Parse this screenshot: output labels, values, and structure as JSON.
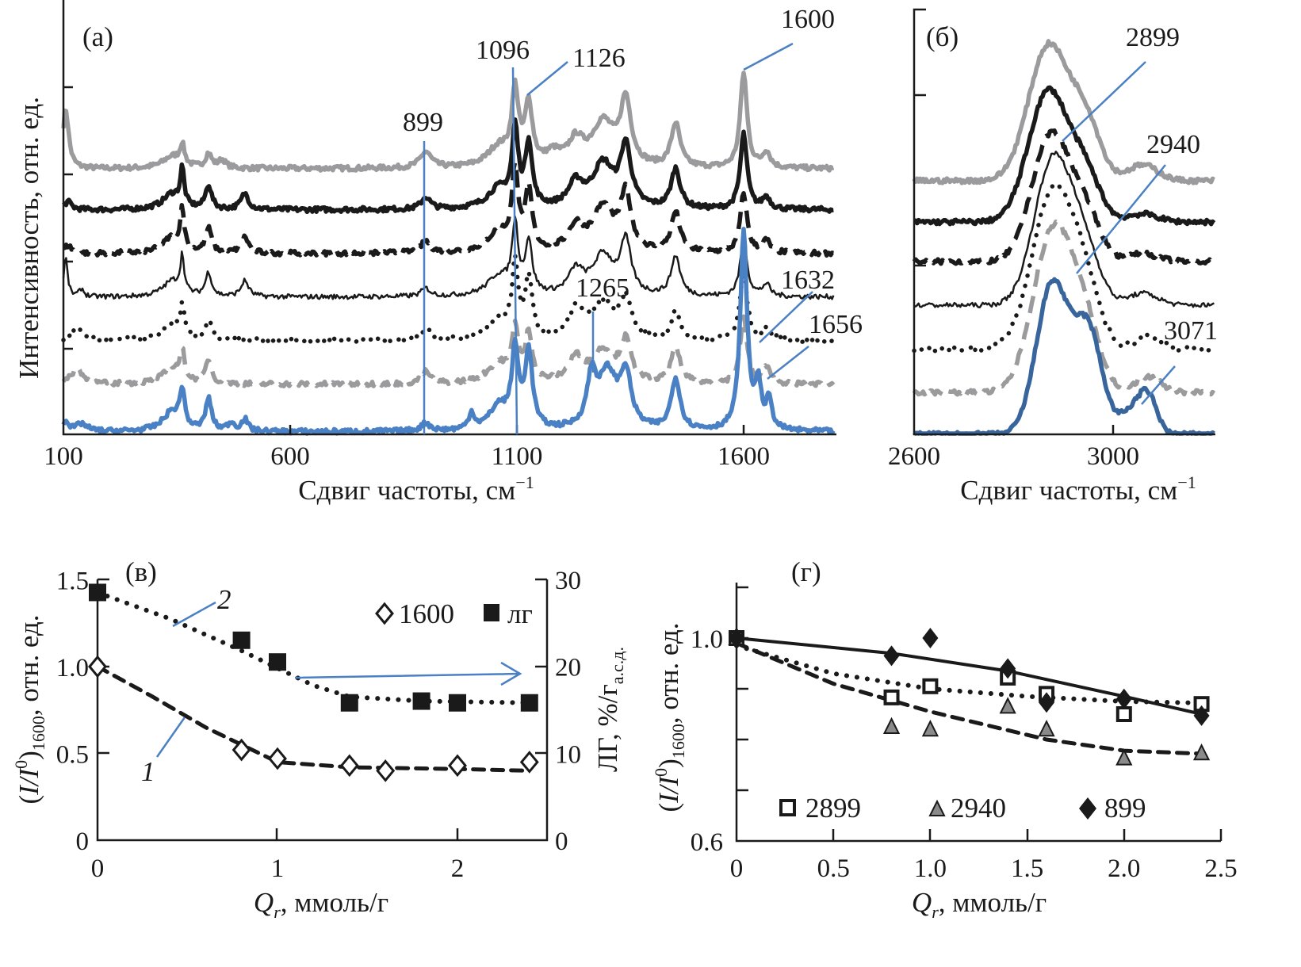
{
  "colors": {
    "gray": "#9b9b9d",
    "black": "#1a1a1a",
    "blue": "#4a80c4",
    "dark_blue": "#38659c",
    "triangle_fill": "#8a8a8a"
  },
  "chart_data": [
    {
      "panel": "(a)",
      "type": "line",
      "xlabel": "Сдвиг частоты, см",
      "xlabel_sup": "−1",
      "ylabel": "Интенсивность, отн. ед.",
      "xlim": [
        100,
        1800
      ],
      "xticks": [
        "100",
        "600",
        "1100",
        "1600"
      ],
      "annotations": [
        "899",
        "1096",
        "1126",
        "1600",
        "1265",
        "1632",
        "1656"
      ],
      "series": [
        {
          "color": "#9b9b9d",
          "style": "solid",
          "weight": "thick",
          "peaks": [
            [
              105,
              0.75,
              8
            ],
            [
              340,
              0.15,
              25
            ],
            [
              362,
              0.25,
              6
            ],
            [
              420,
              0.18,
              8
            ],
            [
              450,
              0.1,
              10
            ],
            [
              899,
              0.2,
              15
            ],
            [
              1060,
              0.25,
              30
            ],
            [
              1096,
              0.9,
              9
            ],
            [
              1126,
              0.75,
              10
            ],
            [
              1180,
              0.15,
              20
            ],
            [
              1230,
              0.3,
              20
            ],
            [
              1290,
              0.55,
              30
            ],
            [
              1340,
              0.8,
              14
            ],
            [
              1450,
              0.55,
              12
            ],
            [
              1600,
              1.2,
              9
            ],
            [
              1650,
              0.2,
              10
            ]
          ]
        },
        {
          "color": "#1a1a1a",
          "style": "solid",
          "weight": "thick",
          "peaks": [
            [
              110,
              0.1,
              10
            ],
            [
              340,
              0.2,
              25
            ],
            [
              362,
              0.45,
              5
            ],
            [
              420,
              0.3,
              8
            ],
            [
              500,
              0.2,
              10
            ],
            [
              899,
              0.15,
              12
            ],
            [
              1060,
              0.25,
              30
            ],
            [
              1096,
              0.95,
              8
            ],
            [
              1126,
              0.8,
              9
            ],
            [
              1230,
              0.3,
              20
            ],
            [
              1290,
              0.55,
              28
            ],
            [
              1340,
              0.75,
              14
            ],
            [
              1450,
              0.5,
              12
            ],
            [
              1600,
              0.95,
              9
            ],
            [
              1650,
              0.15,
              10
            ]
          ]
        },
        {
          "color": "#1a1a1a",
          "style": "dashed",
          "weight": "thick",
          "peaks": [
            [
              110,
              0.1,
              10
            ],
            [
              340,
              0.2,
              25
            ],
            [
              362,
              0.5,
              5
            ],
            [
              420,
              0.3,
              8
            ],
            [
              500,
              0.2,
              10
            ],
            [
              899,
              0.15,
              12
            ],
            [
              1060,
              0.25,
              30
            ],
            [
              1096,
              1.0,
              8
            ],
            [
              1126,
              0.75,
              9
            ],
            [
              1230,
              0.3,
              20
            ],
            [
              1290,
              0.55,
              28
            ],
            [
              1340,
              0.7,
              14
            ],
            [
              1450,
              0.5,
              12
            ],
            [
              1600,
              0.75,
              9
            ],
            [
              1650,
              0.15,
              10
            ]
          ]
        },
        {
          "color": "#1a1a1a",
          "style": "solid",
          "weight": "thin",
          "peaks": [
            [
              105,
              0.5,
              5
            ],
            [
              140,
              0.1,
              6
            ],
            [
              340,
              0.2,
              25
            ],
            [
              362,
              0.45,
              5
            ],
            [
              420,
              0.3,
              8
            ],
            [
              500,
              0.2,
              10
            ],
            [
              899,
              0.1,
              12
            ],
            [
              1060,
              0.25,
              30
            ],
            [
              1096,
              0.85,
              8
            ],
            [
              1126,
              0.65,
              9
            ],
            [
              1230,
              0.3,
              20
            ],
            [
              1290,
              0.5,
              28
            ],
            [
              1340,
              0.65,
              14
            ],
            [
              1450,
              0.5,
              12
            ],
            [
              1600,
              0.75,
              9
            ],
            [
              1650,
              0.15,
              10
            ]
          ]
        },
        {
          "color": "#1a1a1a",
          "style": "dotted",
          "weight": "thick",
          "peaks": [
            [
              130,
              0.15,
              15
            ],
            [
              340,
              0.2,
              25
            ],
            [
              362,
              0.35,
              6
            ],
            [
              420,
              0.25,
              8
            ],
            [
              899,
              0.15,
              12
            ],
            [
              1060,
              0.25,
              30
            ],
            [
              1096,
              0.9,
              8
            ],
            [
              1126,
              0.75,
              9
            ],
            [
              1230,
              0.35,
              20
            ],
            [
              1290,
              0.45,
              28
            ],
            [
              1340,
              0.5,
              14
            ],
            [
              1450,
              0.35,
              12
            ],
            [
              1600,
              0.9,
              9
            ],
            [
              1650,
              0.15,
              10
            ]
          ]
        },
        {
          "color": "#9b9b9d",
          "style": "dashed",
          "weight": "thick",
          "peaks": [
            [
              130,
              0.2,
              15
            ],
            [
              340,
              0.2,
              25
            ],
            [
              362,
              0.35,
              6
            ],
            [
              420,
              0.3,
              8
            ],
            [
              899,
              0.15,
              12
            ],
            [
              1060,
              0.25,
              30
            ],
            [
              1096,
              0.65,
              8
            ],
            [
              1126,
              0.6,
              9
            ],
            [
              1230,
              0.3,
              20
            ],
            [
              1290,
              0.4,
              28
            ],
            [
              1340,
              0.5,
              14
            ],
            [
              1450,
              0.45,
              12
            ],
            [
              1600,
              0.85,
              9
            ],
            [
              1650,
              0.2,
              10
            ]
          ]
        },
        {
          "color": "#4a80c4",
          "style": "solid",
          "weight": "thick",
          "peaks": [
            [
              105,
              0.15,
              6
            ],
            [
              140,
              0.1,
              15
            ],
            [
              340,
              0.25,
              25
            ],
            [
              362,
              0.45,
              6
            ],
            [
              420,
              0.4,
              8
            ],
            [
              470,
              0.1,
              10
            ],
            [
              500,
              0.15,
              8
            ],
            [
              899,
              0.1,
              12
            ],
            [
              1000,
              0.2,
              8
            ],
            [
              1060,
              0.3,
              25
            ],
            [
              1096,
              0.95,
              9
            ],
            [
              1126,
              0.95,
              10
            ],
            [
              1265,
              0.6,
              12
            ],
            [
              1300,
              0.7,
              25
            ],
            [
              1340,
              0.65,
              14
            ],
            [
              1450,
              0.65,
              12
            ],
            [
              1600,
              2.5,
              9
            ],
            [
              1632,
              0.55,
              8
            ],
            [
              1656,
              0.35,
              8
            ]
          ]
        }
      ]
    },
    {
      "panel": "(б)",
      "type": "line",
      "xlabel": "Сдвиг частоты, см",
      "xlabel_sup": "−1",
      "xlim": [
        2600,
        3205
      ],
      "xticks": [
        "2600",
        "3000"
      ],
      "annotations": [
        "2899",
        "2940",
        "3071"
      ],
      "series": [
        {
          "color": "#9b9b9d",
          "style": "solid",
          "weight": "thick",
          "peaks": [
            [
              2870,
              1.7,
              40
            ],
            [
              2945,
              0.7,
              30
            ],
            [
              3060,
              0.2,
              30
            ]
          ]
        },
        {
          "color": "#1a1a1a",
          "style": "solid",
          "weight": "thick",
          "peaks": [
            [
              2870,
              1.65,
              40
            ],
            [
              2945,
              0.55,
              30
            ],
            [
              3060,
              0.1,
              30
            ]
          ]
        },
        {
          "color": "#1a1a1a",
          "style": "dashed",
          "weight": "thick",
          "peaks": [
            [
              2875,
              1.6,
              38
            ],
            [
              2945,
              0.55,
              30
            ],
            [
              3060,
              0.1,
              30
            ]
          ]
        },
        {
          "color": "#1a1a1a",
          "style": "solid",
          "weight": "thin",
          "peaks": [
            [
              2880,
              1.85,
              38
            ],
            [
              2945,
              0.6,
              30
            ],
            [
              3060,
              0.15,
              30
            ]
          ]
        },
        {
          "color": "#1a1a1a",
          "style": "dotted",
          "weight": "thick",
          "peaks": [
            [
              2880,
              2.0,
              42
            ],
            [
              2945,
              0.6,
              30
            ],
            [
              3071,
              0.15,
              25
            ]
          ]
        },
        {
          "color": "#9b9b9d",
          "style": "dashed",
          "weight": "thick",
          "peaks": [
            [
              2880,
              2.05,
              40
            ],
            [
              2945,
              0.7,
              30
            ],
            [
              3071,
              0.2,
              25
            ]
          ]
        },
        {
          "color": "#38659c",
          "style": "solid",
          "weight": "thick",
          "peaks": [
            [
              2878,
              1.9,
              32
            ],
            [
              2950,
              1.3,
              28
            ],
            [
              3071,
              0.4,
              18
            ],
            [
              3040,
              0.3,
              25
            ]
          ]
        }
      ]
    },
    {
      "panel": "(в)",
      "type": "scatter",
      "xlabel_var": "Q",
      "xlabel_sub": "r",
      "xlabel_unit": ", ммоль/г",
      "ylabel_left": {
        "open": "(",
        "var": "I/I",
        "sup": "0",
        "close": ")",
        "sub": "1600",
        "unit": ", отн. ед."
      },
      "ylabel_right": {
        "text": "ЛГ, %/г",
        "sub": "а.с.д."
      },
      "xlim": [
        0,
        2.5
      ],
      "ylim_left": [
        0,
        1.5
      ],
      "ylim_right": [
        0,
        30
      ],
      "xticks": [
        "0",
        "1",
        "2"
      ],
      "yticks_left": [
        "0",
        "0.5",
        "1.0",
        "1.5"
      ],
      "yticks_right": [
        "0",
        "10",
        "20",
        "30"
      ],
      "curve_labels": [
        "1",
        "2"
      ],
      "legend": {
        "placement": "top-right",
        "entries": [
          "1600",
          "лг"
        ]
      },
      "series": [
        {
          "name": "1600",
          "axis": "left",
          "marker": "open-diamond",
          "x": [
            0,
            0.8,
            1.0,
            1.4,
            1.6,
            2.0,
            2.4
          ],
          "y": [
            1.0,
            0.52,
            0.47,
            0.43,
            0.4,
            0.43,
            0.45
          ],
          "fit": {
            "style": "dashed",
            "x": [
              0,
              0.3,
              0.6,
              0.9,
              1.0,
              1.4,
              2.0,
              2.4
            ],
            "y": [
              1.0,
              0.83,
              0.65,
              0.5,
              0.45,
              0.42,
              0.41,
              0.4
            ]
          }
        },
        {
          "name": "лг",
          "axis": "right",
          "marker": "filled-square",
          "x": [
            0,
            0.8,
            1.0,
            1.4,
            1.8,
            2.0,
            2.4
          ],
          "y": [
            28.5,
            23.0,
            20.5,
            15.8,
            16.0,
            15.8,
            15.8
          ],
          "fit": {
            "style": "dotted",
            "x": [
              0,
              0.4,
              0.8,
              1.0,
              1.2,
              1.4,
              1.8,
              2.4
            ],
            "y": [
              28.5,
              25.5,
              21.8,
              19.8,
              17.8,
              16.5,
              16.0,
              15.8
            ]
          }
        }
      ]
    },
    {
      "panel": "(г)",
      "type": "scatter",
      "xlabel_var": "Q",
      "xlabel_sub": "r",
      "xlabel_unit": ", ммоль/г",
      "ylabel_left": {
        "open": "(",
        "var": "I/I",
        "sup": "0",
        "close": ")",
        "sub": "1600",
        "unit": ", отн. ед."
      },
      "xlim": [
        0,
        2.5
      ],
      "ylim": [
        0.6,
        1.1
      ],
      "xticks": [
        "0",
        "0.5",
        "1.0",
        "1.5",
        "2.0",
        "2.5"
      ],
      "yticks_labeled": [
        "0.6",
        "1.0"
      ],
      "legend": {
        "placement": "bottom",
        "entries": [
          "2899",
          "2940",
          "899"
        ]
      },
      "series": [
        {
          "name": "2899",
          "marker": "open-square",
          "x": [
            0,
            0.8,
            1.0,
            1.4,
            1.6,
            2.0,
            2.4
          ],
          "y": [
            1.0,
            0.883,
            0.905,
            0.922,
            0.89,
            0.85,
            0.87
          ],
          "fit": {
            "style": "dotted",
            "x": [
              0,
              0.5,
              1.0,
              1.5,
              2.0,
              2.4
            ],
            "y": [
              0.985,
              0.93,
              0.9,
              0.885,
              0.875,
              0.872
            ]
          }
        },
        {
          "name": "2940",
          "marker": "gray-triangle",
          "x": [
            0,
            0.8,
            1.0,
            1.4,
            1.6,
            2.0,
            2.4
          ],
          "y": [
            1.0,
            0.825,
            0.82,
            0.865,
            0.82,
            0.763,
            0.773
          ],
          "fit": {
            "style": "dashed",
            "x": [
              0,
              0.5,
              1.0,
              1.6,
              2.0,
              2.4
            ],
            "y": [
              0.99,
              0.91,
              0.855,
              0.8,
              0.778,
              0.772
            ]
          }
        },
        {
          "name": "899",
          "marker": "filled-diamond",
          "x": [
            0,
            0.8,
            1.0,
            1.4,
            1.6,
            2.0,
            2.4
          ],
          "y": [
            1.0,
            0.965,
            1.0,
            0.94,
            0.873,
            0.88,
            0.847
          ],
          "fit": {
            "style": "solid",
            "x": [
              0,
              0.8,
              1.4,
              2.0,
              2.4
            ],
            "y": [
              1.0,
              0.97,
              0.935,
              0.885,
              0.85
            ]
          }
        }
      ]
    }
  ]
}
